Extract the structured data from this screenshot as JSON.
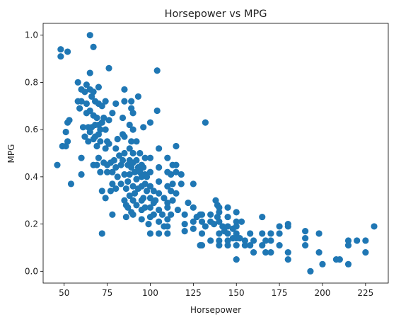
{
  "chart_data": {
    "type": "scatter",
    "title": "Horsepower vs MPG",
    "xlabel": "Horsepower",
    "ylabel": "MPG",
    "xlim": [
      37.8,
      238.2
    ],
    "ylim": [
      -0.05,
      1.05
    ],
    "xticks": [
      50,
      75,
      100,
      125,
      150,
      175,
      200,
      225
    ],
    "yticks": [
      0.0,
      0.2,
      0.4,
      0.6,
      0.8,
      1.0
    ],
    "xtick_labels": [
      "50",
      "75",
      "100",
      "125",
      "150",
      "175",
      "200",
      "225"
    ],
    "ytick_labels": [
      "0.0",
      "0.2",
      "0.4",
      "0.6",
      "0.8",
      "1.0"
    ],
    "grid": false,
    "marker_color": "#1f77b4",
    "points": [
      [
        46,
        0.45
      ],
      [
        48,
        0.94
      ],
      [
        48,
        0.91
      ],
      [
        49,
        0.53
      ],
      [
        51,
        0.53
      ],
      [
        51,
        0.59
      ],
      [
        52,
        0.93
      ],
      [
        52,
        0.63
      ],
      [
        52,
        0.55
      ],
      [
        53,
        0.64
      ],
      [
        54,
        0.37
      ],
      [
        58,
        0.8
      ],
      [
        58,
        0.72
      ],
      [
        59,
        0.69
      ],
      [
        60,
        0.77
      ],
      [
        60,
        0.72
      ],
      [
        60,
        0.48
      ],
      [
        60,
        0.41
      ],
      [
        61,
        0.61
      ],
      [
        62,
        0.76
      ],
      [
        62,
        0.57
      ],
      [
        63,
        0.79
      ],
      [
        63,
        0.71
      ],
      [
        63,
        0.67
      ],
      [
        64,
        0.61
      ],
      [
        64,
        0.55
      ],
      [
        65,
        1.0
      ],
      [
        65,
        0.84
      ],
      [
        65,
        0.77
      ],
      [
        65,
        0.68
      ],
      [
        65,
        0.59
      ],
      [
        66,
        0.74
      ],
      [
        66,
        0.61
      ],
      [
        67,
        0.95
      ],
      [
        67,
        0.76
      ],
      [
        67,
        0.66
      ],
      [
        67,
        0.56
      ],
      [
        67,
        0.45
      ],
      [
        68,
        0.72
      ],
      [
        68,
        0.62
      ],
      [
        68,
        0.57
      ],
      [
        69,
        0.65
      ],
      [
        69,
        0.53
      ],
      [
        69,
        0.45
      ],
      [
        70,
        0.78
      ],
      [
        70,
        0.71
      ],
      [
        70,
        0.62
      ],
      [
        70,
        0.58
      ],
      [
        70,
        0.48
      ],
      [
        71,
        0.6
      ],
      [
        71,
        0.55
      ],
      [
        71,
        0.42
      ],
      [
        72,
        0.7
      ],
      [
        72,
        0.63
      ],
      [
        72,
        0.34
      ],
      [
        72,
        0.16
      ],
      [
        73,
        0.65
      ],
      [
        73,
        0.46
      ],
      [
        74,
        0.72
      ],
      [
        74,
        0.6
      ],
      [
        74,
        0.52
      ],
      [
        74,
        0.31
      ],
      [
        75,
        0.55
      ],
      [
        75,
        0.45
      ],
      [
        75,
        0.42
      ],
      [
        76,
        0.86
      ],
      [
        76,
        0.64
      ],
      [
        76,
        0.54
      ],
      [
        77,
        0.34
      ],
      [
        77,
        0.46
      ],
      [
        78,
        0.67
      ],
      [
        78,
        0.42
      ],
      [
        78,
        0.37
      ],
      [
        78,
        0.24
      ],
      [
        79,
        0.47
      ],
      [
        80,
        0.71
      ],
      [
        80,
        0.52
      ],
      [
        80,
        0.44
      ],
      [
        80,
        0.35
      ],
      [
        81,
        0.56
      ],
      [
        81,
        0.4
      ],
      [
        82,
        0.49
      ],
      [
        83,
        0.45
      ],
      [
        83,
        0.37
      ],
      [
        84,
        0.65
      ],
      [
        84,
        0.58
      ],
      [
        84,
        0.47
      ],
      [
        85,
        0.77
      ],
      [
        85,
        0.72
      ],
      [
        85,
        0.57
      ],
      [
        85,
        0.5
      ],
      [
        85,
        0.41
      ],
      [
        85,
        0.3
      ],
      [
        86,
        0.35
      ],
      [
        86,
        0.28
      ],
      [
        86,
        0.23
      ],
      [
        87,
        0.45
      ],
      [
        87,
        0.38
      ],
      [
        87,
        0.27
      ],
      [
        88,
        0.62
      ],
      [
        88,
        0.52
      ],
      [
        88,
        0.47
      ],
      [
        88,
        0.41
      ],
      [
        88,
        0.32
      ],
      [
        89,
        0.72
      ],
      [
        89,
        0.69
      ],
      [
        89,
        0.55
      ],
      [
        89,
        0.44
      ],
      [
        89,
        0.25
      ],
      [
        90,
        0.67
      ],
      [
        90,
        0.6
      ],
      [
        90,
        0.5
      ],
      [
        90,
        0.46
      ],
      [
        90,
        0.36
      ],
      [
        90,
        0.3
      ],
      [
        90,
        0.24
      ],
      [
        91,
        0.42
      ],
      [
        91,
        0.33
      ],
      [
        92,
        0.55
      ],
      [
        92,
        0.47
      ],
      [
        92,
        0.39
      ],
      [
        92,
        0.28
      ],
      [
        93,
        0.74
      ],
      [
        93,
        0.44
      ],
      [
        93,
        0.35
      ],
      [
        94,
        0.5
      ],
      [
        94,
        0.42
      ],
      [
        95,
        0.45
      ],
      [
        95,
        0.4
      ],
      [
        95,
        0.36
      ],
      [
        95,
        0.3
      ],
      [
        95,
        0.26
      ],
      [
        95,
        0.22
      ],
      [
        96,
        0.61
      ],
      [
        96,
        0.44
      ],
      [
        96,
        0.31
      ],
      [
        97,
        0.48
      ],
      [
        97,
        0.41
      ],
      [
        97,
        0.37
      ],
      [
        97,
        0.27
      ],
      [
        98,
        0.4
      ],
      [
        98,
        0.34
      ],
      [
        99,
        0.2
      ],
      [
        100,
        0.63
      ],
      [
        100,
        0.48
      ],
      [
        100,
        0.42
      ],
      [
        100,
        0.36
      ],
      [
        100,
        0.31
      ],
      [
        100,
        0.27
      ],
      [
        100,
        0.23
      ],
      [
        100,
        0.16
      ],
      [
        102,
        0.34
      ],
      [
        102,
        0.29
      ],
      [
        102,
        0.24
      ],
      [
        103,
        0.3
      ],
      [
        104,
        0.85
      ],
      [
        104,
        0.68
      ],
      [
        105,
        0.52
      ],
      [
        105,
        0.44
      ],
      [
        105,
        0.38
      ],
      [
        105,
        0.33
      ],
      [
        105,
        0.26
      ],
      [
        105,
        0.21
      ],
      [
        105,
        0.16
      ],
      [
        107,
        0.24
      ],
      [
        108,
        0.31
      ],
      [
        108,
        0.19
      ],
      [
        110,
        0.48
      ],
      [
        110,
        0.42
      ],
      [
        110,
        0.36
      ],
      [
        110,
        0.29
      ],
      [
        110,
        0.27
      ],
      [
        110,
        0.22
      ],
      [
        110,
        0.19
      ],
      [
        110,
        0.16
      ],
      [
        112,
        0.41
      ],
      [
        112,
        0.34
      ],
      [
        112,
        0.24
      ],
      [
        113,
        0.45
      ],
      [
        113,
        0.37
      ],
      [
        113,
        0.3
      ],
      [
        115,
        0.53
      ],
      [
        115,
        0.45
      ],
      [
        115,
        0.42
      ],
      [
        115,
        0.33
      ],
      [
        116,
        0.26
      ],
      [
        118,
        0.41
      ],
      [
        118,
        0.37
      ],
      [
        120,
        0.24
      ],
      [
        120,
        0.2
      ],
      [
        120,
        0.17
      ],
      [
        122,
        0.29
      ],
      [
        125,
        0.37
      ],
      [
        125,
        0.27
      ],
      [
        125,
        0.21
      ],
      [
        125,
        0.18
      ],
      [
        127,
        0.23
      ],
      [
        129,
        0.24
      ],
      [
        129,
        0.11
      ],
      [
        130,
        0.24
      ],
      [
        130,
        0.21
      ],
      [
        130,
        0.16
      ],
      [
        130,
        0.11
      ],
      [
        132,
        0.63
      ],
      [
        132,
        0.19
      ],
      [
        135,
        0.24
      ],
      [
        135,
        0.21
      ],
      [
        135,
        0.13
      ],
      [
        137,
        0.2
      ],
      [
        138,
        0.3
      ],
      [
        139,
        0.28
      ],
      [
        139,
        0.23
      ],
      [
        140,
        0.27
      ],
      [
        140,
        0.25
      ],
      [
        140,
        0.21
      ],
      [
        140,
        0.16
      ],
      [
        140,
        0.13
      ],
      [
        140,
        0.11
      ],
      [
        142,
        0.19
      ],
      [
        143,
        0.17
      ],
      [
        145,
        0.27
      ],
      [
        145,
        0.23
      ],
      [
        145,
        0.19
      ],
      [
        145,
        0.16
      ],
      [
        145,
        0.13
      ],
      [
        145,
        0.11
      ],
      [
        148,
        0.18
      ],
      [
        148,
        0.14
      ],
      [
        150,
        0.25
      ],
      [
        150,
        0.21
      ],
      [
        150,
        0.19
      ],
      [
        150,
        0.16
      ],
      [
        150,
        0.14
      ],
      [
        150,
        0.11
      ],
      [
        150,
        0.05
      ],
      [
        152,
        0.14
      ],
      [
        153,
        0.21
      ],
      [
        155,
        0.13
      ],
      [
        155,
        0.11
      ],
      [
        158,
        0.16
      ],
      [
        158,
        0.11
      ],
      [
        160,
        0.08
      ],
      [
        160,
        0.13
      ],
      [
        165,
        0.23
      ],
      [
        165,
        0.16
      ],
      [
        165,
        0.11
      ],
      [
        167,
        0.13
      ],
      [
        167,
        0.08
      ],
      [
        170,
        0.16
      ],
      [
        170,
        0.13
      ],
      [
        170,
        0.08
      ],
      [
        175,
        0.19
      ],
      [
        175,
        0.16
      ],
      [
        175,
        0.11
      ],
      [
        180,
        0.19
      ],
      [
        180,
        0.2
      ],
      [
        180,
        0.08
      ],
      [
        180,
        0.05
      ],
      [
        190,
        0.17
      ],
      [
        190,
        0.14
      ],
      [
        190,
        0.11
      ],
      [
        193,
        0.0
      ],
      [
        198,
        0.16
      ],
      [
        198,
        0.08
      ],
      [
        200,
        0.03
      ],
      [
        208,
        0.05
      ],
      [
        210,
        0.05
      ],
      [
        215,
        0.13
      ],
      [
        215,
        0.11
      ],
      [
        215,
        0.03
      ],
      [
        220,
        0.13
      ],
      [
        225,
        0.13
      ],
      [
        225,
        0.08
      ],
      [
        230,
        0.19
      ]
    ]
  }
}
